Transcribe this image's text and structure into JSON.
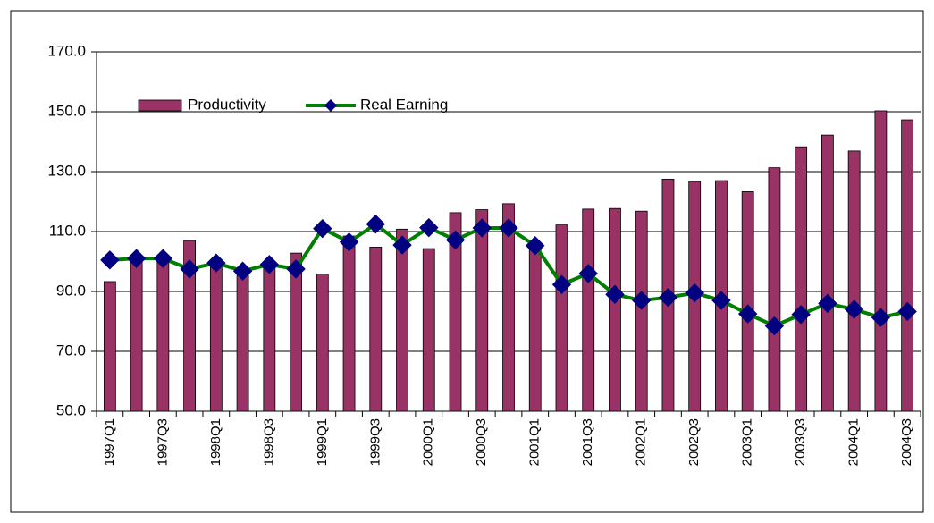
{
  "chart_data": {
    "type": "bar_line",
    "categories": [
      "1997Q1",
      null,
      "1997Q3",
      null,
      "1998Q1",
      null,
      "1998Q3",
      null,
      "1999Q1",
      null,
      "1999Q3",
      null,
      "2000Q1",
      null,
      "2000Q3",
      null,
      "2001Q1",
      null,
      "2001Q3",
      null,
      "2002Q1",
      null,
      "2002Q3",
      null,
      "2003Q1",
      null,
      "2003Q3",
      null,
      "2004Q1",
      null,
      "2004Q3"
    ],
    "series": [
      {
        "name": "Productivity",
        "type": "bar",
        "color": "#993366",
        "values": [
          93.3,
          101,
          101.5,
          107,
          99,
          97.5,
          99.5,
          102.8,
          95.8,
          108.5,
          104.8,
          110.8,
          104.3,
          116.3,
          117.3,
          119.3,
          105.5,
          112.2,
          117.5,
          117.7,
          116.8,
          127.5,
          126.7,
          127,
          123.3,
          131.3,
          138.3,
          142.2,
          136.9,
          150.3,
          147.3
        ]
      },
      {
        "name": "Real Earning",
        "type": "line",
        "color": "#008000",
        "marker_color": "#000080",
        "values": [
          100.5,
          101,
          101,
          97.5,
          99.5,
          96.8,
          99,
          97.5,
          111,
          106.5,
          112.5,
          105.5,
          111.3,
          107.2,
          111.2,
          111.2,
          105.3,
          92.3,
          96,
          89,
          87,
          88,
          89.5,
          87,
          82.5,
          78.5,
          82.3,
          86,
          84,
          81.3,
          83.3
        ]
      }
    ],
    "ylim": [
      50,
      170
    ],
    "yticks": [
      {
        "value": 50,
        "label": "50.0"
      },
      {
        "value": 70,
        "label": "70.0"
      },
      {
        "value": 90,
        "label": "90.0"
      },
      {
        "value": 110,
        "label": "110.0"
      },
      {
        "value": 130,
        "label": "130.0"
      },
      {
        "value": 150,
        "label": "150.0"
      },
      {
        "value": 170,
        "label": "170.0"
      }
    ],
    "grid": true,
    "legend": "top-left"
  }
}
